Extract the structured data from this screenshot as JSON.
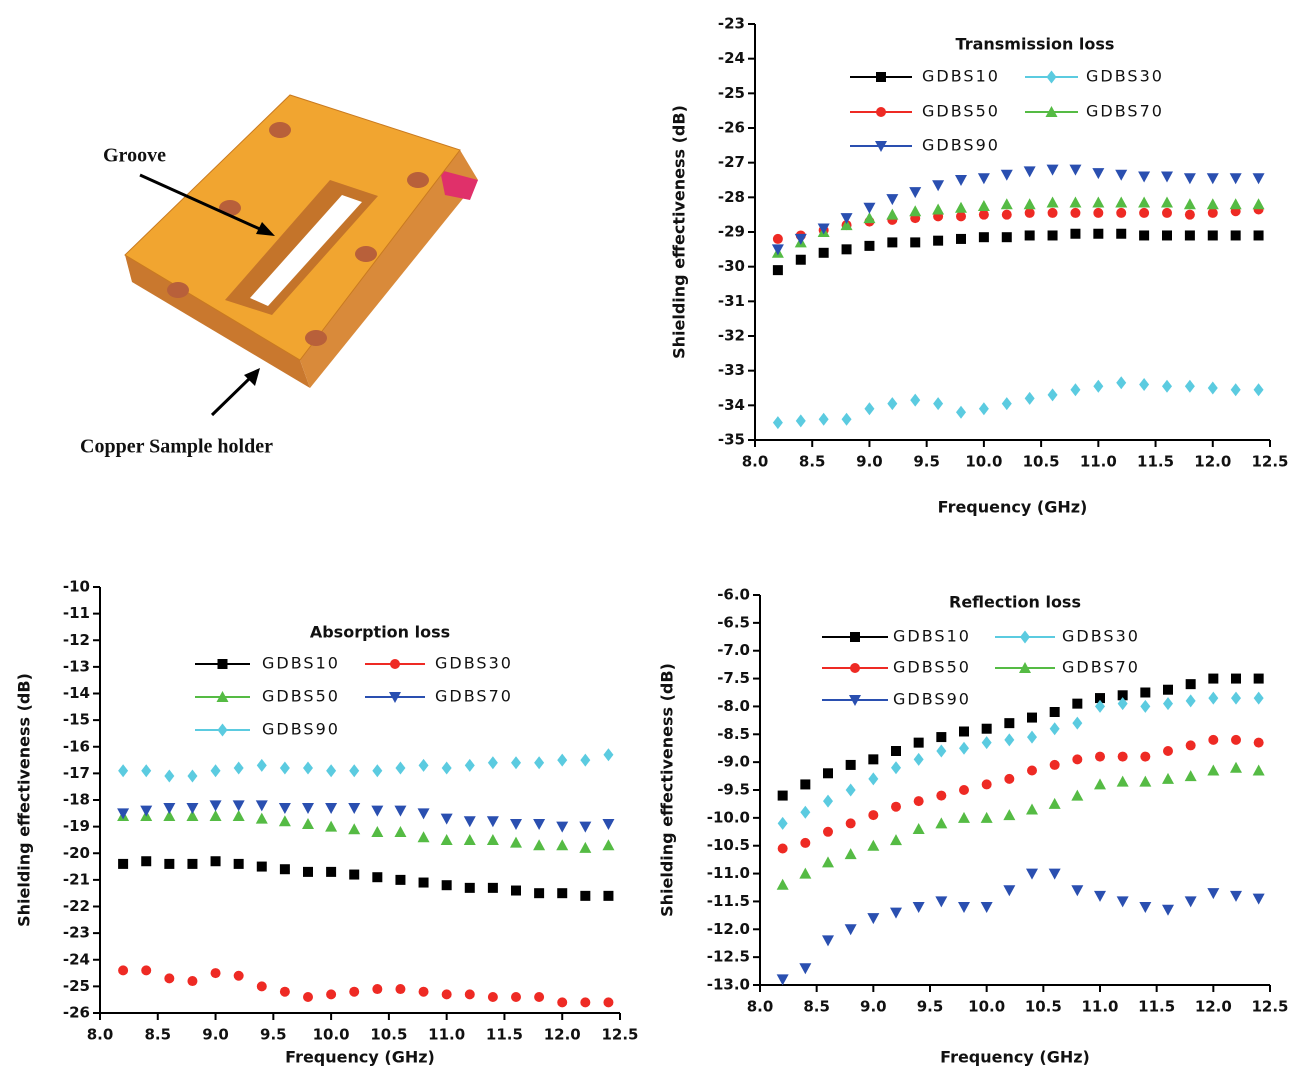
{
  "illustration": {
    "labels": [
      "Groove",
      "Copper Sample holder"
    ]
  },
  "chart_data": [
    {
      "type": "scatter",
      "title": "Transmission loss",
      "x_label": "Frequency (GHz)",
      "y_label": "Shielding effectiveness (dB)",
      "x": [
        8.2,
        8.4,
        8.6,
        8.8,
        9.0,
        9.2,
        9.4,
        9.6,
        9.8,
        10.0,
        10.2,
        10.4,
        10.6,
        10.8,
        11.0,
        11.2,
        11.4,
        11.6,
        11.8,
        12.0,
        12.2,
        12.4
      ],
      "xlim": [
        8.0,
        12.5
      ],
      "xticks": [
        {
          "value": 8.0,
          "label": "8.0"
        },
        8.5,
        {
          "value": 9.0,
          "label": "9.0"
        },
        9.5,
        {
          "value": 10.0,
          "label": "10.0"
        },
        10.5,
        {
          "value": 11.0,
          "label": "11.0"
        },
        11.5,
        {
          "value": 12.0,
          "label": "12.0"
        },
        12.5
      ],
      "ylim": [
        -35,
        -23
      ],
      "yticks": [
        -23,
        -24,
        -25,
        -26,
        -27,
        -28,
        -29,
        -30,
        -31,
        -32,
        -33,
        -34,
        -35
      ],
      "series": [
        {
          "name": "GDBS10",
          "color": "#000000",
          "marker": "square",
          "values": [
            -30.1,
            -29.8,
            -29.6,
            -29.5,
            -29.4,
            -29.3,
            -29.3,
            -29.25,
            -29.2,
            -29.15,
            -29.15,
            -29.1,
            -29.1,
            -29.05,
            -29.05,
            -29.05,
            -29.1,
            -29.1,
            -29.1,
            -29.1,
            -29.1,
            -29.1
          ]
        },
        {
          "name": "GDBS30",
          "color": "#5bcbe0",
          "marker": "diamond",
          "values": [
            -34.5,
            -34.45,
            -34.4,
            -34.4,
            -34.1,
            -33.95,
            -33.85,
            -33.95,
            -34.2,
            -34.1,
            -33.95,
            -33.8,
            -33.7,
            -33.55,
            -33.45,
            -33.35,
            -33.4,
            -33.45,
            -33.45,
            -33.5,
            -33.55,
            -33.55
          ]
        },
        {
          "name": "GDBS50",
          "color": "#ee2a24",
          "marker": "circle",
          "values": [
            -29.2,
            -29.1,
            -28.95,
            -28.8,
            -28.7,
            -28.65,
            -28.6,
            -28.55,
            -28.55,
            -28.5,
            -28.5,
            -28.45,
            -28.45,
            -28.45,
            -28.45,
            -28.45,
            -28.45,
            -28.45,
            -28.5,
            -28.45,
            -28.4,
            -28.35
          ]
        },
        {
          "name": "GDBS70",
          "color": "#55bb44",
          "marker": "triangle-up",
          "values": [
            -29.6,
            -29.3,
            -29.0,
            -28.8,
            -28.6,
            -28.5,
            -28.4,
            -28.35,
            -28.3,
            -28.25,
            -28.2,
            -28.2,
            -28.15,
            -28.15,
            -28.15,
            -28.15,
            -28.15,
            -28.15,
            -28.2,
            -28.2,
            -28.2,
            -28.2
          ]
        },
        {
          "name": "GDBS90",
          "color": "#2a4fb0",
          "marker": "triangle-down",
          "values": [
            -29.5,
            -29.2,
            -28.9,
            -28.6,
            -28.3,
            -28.05,
            -27.85,
            -27.65,
            -27.5,
            -27.45,
            -27.35,
            -27.25,
            -27.2,
            -27.2,
            -27.3,
            -27.35,
            -27.4,
            -27.4,
            -27.45,
            -27.45,
            -27.45,
            -27.45
          ]
        }
      ]
    },
    {
      "type": "scatter",
      "title": "Absorption loss",
      "x_label": "Frequency (GHz)",
      "y_label": "Shielding effectiveness (dB)",
      "x": [
        8.2,
        8.4,
        8.6,
        8.8,
        9.0,
        9.2,
        9.4,
        9.6,
        9.8,
        10.0,
        10.2,
        10.4,
        10.6,
        10.8,
        11.0,
        11.2,
        11.4,
        11.6,
        11.8,
        12.0,
        12.2,
        12.4
      ],
      "xlim": [
        8.0,
        12.5
      ],
      "xticks": [
        {
          "value": 8.0,
          "label": "8.0"
        },
        8.5,
        {
          "value": 9.0,
          "label": "9.0"
        },
        9.5,
        {
          "value": 10.0,
          "label": "10.0"
        },
        10.5,
        {
          "value": 11.0,
          "label": "11.0"
        },
        11.5,
        {
          "value": 12.0,
          "label": "12.0"
        },
        12.5
      ],
      "ylim": [
        -26,
        -10
      ],
      "yticks": [
        -10,
        -11,
        -12,
        -13,
        -14,
        -15,
        -16,
        -17,
        -18,
        -19,
        -20,
        -21,
        -22,
        -23,
        -24,
        -25,
        -26
      ],
      "series": [
        {
          "name": "GDBS10",
          "color": "#000000",
          "marker": "square",
          "values": [
            -20.4,
            -20.3,
            -20.4,
            -20.4,
            -20.3,
            -20.4,
            -20.5,
            -20.6,
            -20.7,
            -20.7,
            -20.8,
            -20.9,
            -21.0,
            -21.1,
            -21.2,
            -21.3,
            -21.3,
            -21.4,
            -21.5,
            -21.5,
            -21.6,
            -21.6
          ]
        },
        {
          "name": "GDBS30",
          "color": "#ee2a24",
          "marker": "circle",
          "values": [
            -24.4,
            -24.4,
            -24.7,
            -24.8,
            -24.5,
            -24.6,
            -25.0,
            -25.2,
            -25.4,
            -25.3,
            -25.2,
            -25.1,
            -25.1,
            -25.2,
            -25.3,
            -25.3,
            -25.4,
            -25.4,
            -25.4,
            -25.6,
            -25.6,
            -25.6
          ]
        },
        {
          "name": "GDBS50",
          "color": "#55bb44",
          "marker": "triangle-up",
          "values": [
            -18.6,
            -18.6,
            -18.6,
            -18.6,
            -18.6,
            -18.6,
            -18.7,
            -18.8,
            -18.9,
            -19.0,
            -19.1,
            -19.2,
            -19.2,
            -19.4,
            -19.5,
            -19.5,
            -19.5,
            -19.6,
            -19.7,
            -19.7,
            -19.8,
            -19.7
          ]
        },
        {
          "name": "GDBS70",
          "color": "#2a4fb0",
          "marker": "triangle-down",
          "values": [
            -18.5,
            -18.4,
            -18.3,
            -18.3,
            -18.2,
            -18.2,
            -18.2,
            -18.3,
            -18.3,
            -18.3,
            -18.3,
            -18.4,
            -18.4,
            -18.5,
            -18.7,
            -18.8,
            -18.8,
            -18.9,
            -18.9,
            -19.0,
            -19.0,
            -18.9
          ]
        },
        {
          "name": "GDBS90",
          "color": "#5bcbe0",
          "marker": "diamond",
          "values": [
            -16.9,
            -16.9,
            -17.1,
            -17.1,
            -16.9,
            -16.8,
            -16.7,
            -16.8,
            -16.8,
            -16.9,
            -16.9,
            -16.9,
            -16.8,
            -16.7,
            -16.8,
            -16.7,
            -16.6,
            -16.6,
            -16.6,
            -16.5,
            -16.5,
            -16.3
          ]
        }
      ]
    },
    {
      "type": "scatter",
      "title": "Reflection loss",
      "x_label": "Frequency (GHz)",
      "y_label": "Shielding effectiveness (dB)",
      "x": [
        8.2,
        8.4,
        8.6,
        8.8,
        9.0,
        9.2,
        9.4,
        9.6,
        9.8,
        10.0,
        10.2,
        10.4,
        10.6,
        10.8,
        11.0,
        11.2,
        11.4,
        11.6,
        11.8,
        12.0,
        12.2,
        12.4
      ],
      "xlim": [
        8.0,
        12.5
      ],
      "xticks": [
        {
          "value": 8.0,
          "label": "8.0"
        },
        8.5,
        {
          "value": 9.0,
          "label": "9.0"
        },
        9.5,
        {
          "value": 10.0,
          "label": "10.0"
        },
        10.5,
        {
          "value": 11.0,
          "label": "11.0"
        },
        11.5,
        {
          "value": 12.0,
          "label": "12.0"
        },
        12.5
      ],
      "ylim": [
        -13.0,
        -6.0
      ],
      "yticks": [
        {
          "value": -6.0,
          "label": "-6.0"
        },
        -6.5,
        {
          "value": -7.0,
          "label": "-7.0"
        },
        -7.5,
        {
          "value": -8.0,
          "label": "-8.0"
        },
        -8.5,
        {
          "value": -9.0,
          "label": "-9.0"
        },
        -9.5,
        {
          "value": -10.0,
          "label": "-10.0"
        },
        -10.5,
        {
          "value": -11.0,
          "label": "-11.0"
        },
        -11.5,
        {
          "value": -12.0,
          "label": "-12.0"
        },
        -12.5,
        {
          "value": -13.0,
          "label": "-13.0"
        }
      ],
      "series": [
        {
          "name": "GDBS10",
          "color": "#000000",
          "marker": "square",
          "values": [
            -9.6,
            -9.4,
            -9.2,
            -9.05,
            -8.95,
            -8.8,
            -8.65,
            -8.55,
            -8.45,
            -8.4,
            -8.3,
            -8.2,
            -8.1,
            -7.95,
            -7.85,
            -7.8,
            -7.75,
            -7.7,
            -7.6,
            -7.5,
            -7.5,
            -7.5
          ]
        },
        {
          "name": "GDBS30",
          "color": "#5bcbe0",
          "marker": "diamond",
          "values": [
            -10.1,
            -9.9,
            -9.7,
            -9.5,
            -9.3,
            -9.1,
            -8.95,
            -8.8,
            -8.75,
            -8.65,
            -8.6,
            -8.55,
            -8.4,
            -8.3,
            -8.0,
            -7.95,
            -8.0,
            -7.95,
            -7.9,
            -7.85,
            -7.85,
            -7.85
          ]
        },
        {
          "name": "GDBS50",
          "color": "#ee2a24",
          "marker": "circle",
          "values": [
            -10.55,
            -10.45,
            -10.25,
            -10.1,
            -9.95,
            -9.8,
            -9.7,
            -9.6,
            -9.5,
            -9.4,
            -9.3,
            -9.15,
            -9.05,
            -8.95,
            -8.9,
            -8.9,
            -8.9,
            -8.8,
            -8.7,
            -8.6,
            -8.6,
            -8.65
          ]
        },
        {
          "name": "GDBS70",
          "color": "#55bb44",
          "marker": "triangle-up",
          "values": [
            -11.2,
            -11.0,
            -10.8,
            -10.65,
            -10.5,
            -10.4,
            -10.2,
            -10.1,
            -10.0,
            -10.0,
            -9.95,
            -9.85,
            -9.75,
            -9.6,
            -9.4,
            -9.35,
            -9.35,
            -9.3,
            -9.25,
            -9.15,
            -9.1,
            -9.15
          ]
        },
        {
          "name": "GDBS90",
          "color": "#2a4fb0",
          "marker": "triangle-down",
          "values": [
            -12.9,
            -12.7,
            -12.2,
            -12.0,
            -11.8,
            -11.7,
            -11.6,
            -11.5,
            -11.6,
            -11.6,
            -11.3,
            -11.0,
            -11.0,
            -11.3,
            -11.4,
            -11.5,
            -11.6,
            -11.65,
            -11.5,
            -11.35,
            -11.4,
            -11.45
          ]
        }
      ]
    }
  ]
}
